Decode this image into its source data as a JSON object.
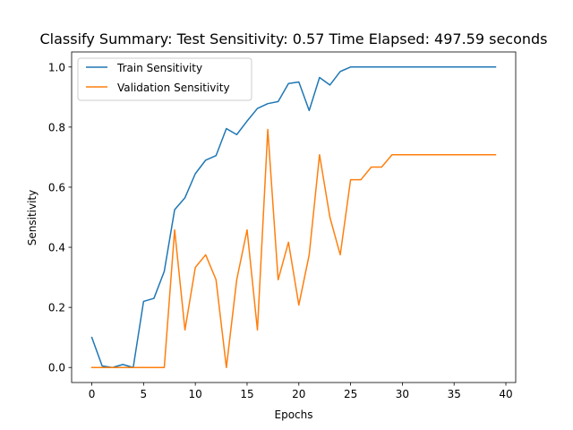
{
  "chart_data": {
    "type": "line",
    "title": "Classify Summary: Test Sensitivity: 0.57 Time Elapsed: 497.59 seconds",
    "xlabel": "Epochs",
    "ylabel": "Sensitivity",
    "xlim": [
      -1.95,
      40.95
    ],
    "ylim": [
      -0.05,
      1.05
    ],
    "xticks": [
      0,
      5,
      10,
      15,
      20,
      25,
      30,
      35,
      40
    ],
    "yticks": [
      0.0,
      0.2,
      0.4,
      0.6,
      0.8,
      1.0
    ],
    "xtick_labels": [
      "0",
      "5",
      "10",
      "15",
      "20",
      "25",
      "30",
      "35",
      "40"
    ],
    "ytick_labels": [
      "0.0",
      "0.2",
      "0.4",
      "0.6",
      "0.8",
      "1.0"
    ],
    "grid": false,
    "legend_position": "top-left",
    "x": [
      0,
      1,
      2,
      3,
      4,
      5,
      6,
      7,
      8,
      9,
      10,
      11,
      12,
      13,
      14,
      15,
      16,
      17,
      18,
      19,
      20,
      21,
      22,
      23,
      24,
      25,
      26,
      27,
      28,
      29,
      30,
      31,
      32,
      33,
      34,
      35,
      36,
      37,
      38,
      39
    ],
    "series": [
      {
        "name": "Train Sensitivity",
        "color": "#1f77b4",
        "values": [
          0.1,
          0.005,
          0.0,
          0.01,
          0.0,
          0.22,
          0.23,
          0.32,
          0.525,
          0.565,
          0.645,
          0.69,
          0.705,
          0.795,
          0.775,
          0.82,
          0.862,
          0.878,
          0.885,
          0.945,
          0.95,
          0.855,
          0.965,
          0.94,
          0.985,
          1.0,
          1.0,
          1.0,
          1.0,
          1.0,
          1.0,
          1.0,
          1.0,
          1.0,
          1.0,
          1.0,
          1.0,
          1.0,
          1.0,
          1.0
        ]
      },
      {
        "name": "Validation Sensitivity",
        "color": "#ff7f0e",
        "values": [
          0.0,
          0.0,
          0.0,
          0.0,
          0.0,
          0.0,
          0.0,
          0.0,
          0.458,
          0.125,
          0.333,
          0.375,
          0.292,
          0.0,
          0.292,
          0.458,
          0.125,
          0.792,
          0.292,
          0.417,
          0.208,
          0.375,
          0.708,
          0.5,
          0.375,
          0.625,
          0.625,
          0.667,
          0.667,
          0.708,
          0.708,
          0.708,
          0.708,
          0.708,
          0.708,
          0.708,
          0.708,
          0.708,
          0.708,
          0.708
        ]
      }
    ]
  }
}
